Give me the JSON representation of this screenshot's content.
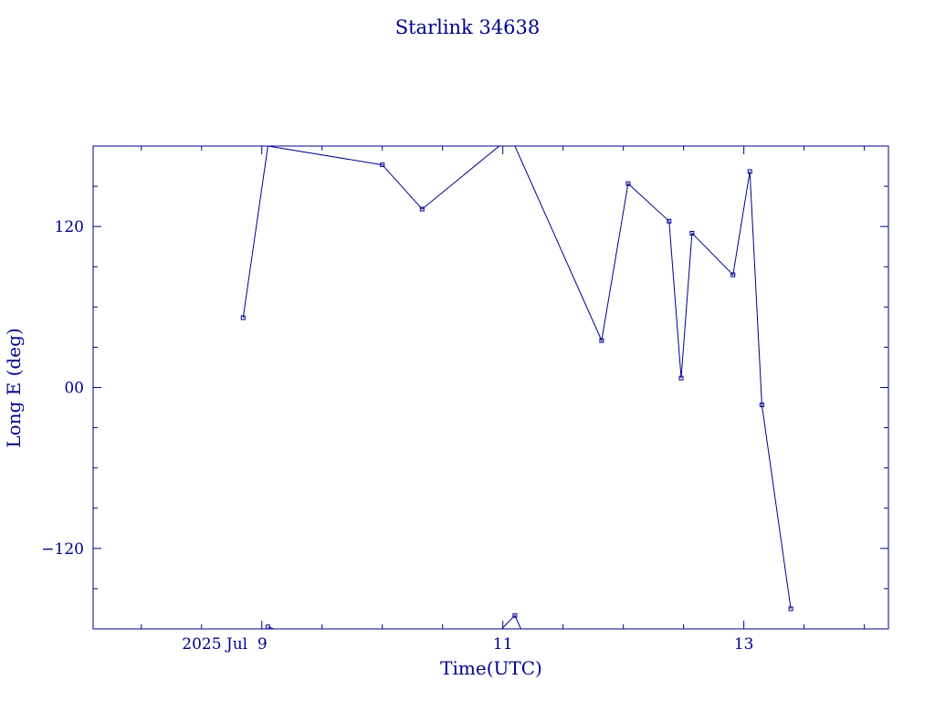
{
  "chart_data": {
    "type": "line",
    "title": "Starlink 34638",
    "xlabel": "Time(UTC)",
    "ylabel": "Long E (deg)",
    "x_tick_labels": [
      "2025 Jul  9",
      "11",
      "13"
    ],
    "x_tick_values": [
      9,
      11,
      13
    ],
    "x_minor_ticks": [
      8.0,
      8.5,
      9.0,
      9.5,
      10.0,
      10.5,
      11.0,
      11.5,
      12.0,
      12.5,
      13.0,
      13.5,
      14.0
    ],
    "xlim": [
      7.6,
      14.2
    ],
    "y_tick_labels": [
      "120",
      "00",
      "−120"
    ],
    "y_tick_values": [
      120,
      0,
      -120
    ],
    "y_minor_ticks": [
      150,
      120,
      90,
      60,
      30,
      0,
      -30,
      -60,
      -90,
      -120,
      -150
    ],
    "ylim": [
      -180,
      180
    ],
    "grid": false,
    "color": "#00008b",
    "segments": [
      [
        {
          "x": 8.845,
          "y": 52
        },
        {
          "x": 9.05,
          "y": 180
        }
      ],
      [
        {
          "x": 9.05,
          "y": 180
        },
        {
          "x": 10.0,
          "y": 166
        },
        {
          "x": 10.33,
          "y": 133
        },
        {
          "x": 10.97,
          "y": 180
        }
      ],
      [
        {
          "x": 11.1,
          "y": 180
        },
        {
          "x": 11.82,
          "y": 35
        },
        {
          "x": 12.04,
          "y": 152
        },
        {
          "x": 12.38,
          "y": 124
        },
        {
          "x": 12.48,
          "y": 7
        },
        {
          "x": 12.57,
          "y": 115
        },
        {
          "x": 12.91,
          "y": 84
        },
        {
          "x": 13.05,
          "y": 161
        },
        {
          "x": 13.15,
          "y": -13
        },
        {
          "x": 13.39,
          "y": -165
        }
      ],
      [
        {
          "x": 9.05,
          "y": -178.5
        },
        {
          "x": 9.1,
          "y": -180
        }
      ],
      [
        {
          "x": 10.99,
          "y": -180
        },
        {
          "x": 11.1,
          "y": -170
        },
        {
          "x": 11.15,
          "y": -180
        }
      ]
    ],
    "markers": [
      {
        "x": 8.845,
        "y": 52
      },
      {
        "x": 10.0,
        "y": 166
      },
      {
        "x": 10.33,
        "y": 133
      },
      {
        "x": 11.82,
        "y": 35
      },
      {
        "x": 12.04,
        "y": 152
      },
      {
        "x": 12.38,
        "y": 124
      },
      {
        "x": 12.48,
        "y": 7
      },
      {
        "x": 12.57,
        "y": 115
      },
      {
        "x": 12.91,
        "y": 84
      },
      {
        "x": 13.05,
        "y": 161
      },
      {
        "x": 13.15,
        "y": -13
      },
      {
        "x": 13.39,
        "y": -165
      },
      {
        "x": 9.05,
        "y": -178.5
      },
      {
        "x": 11.1,
        "y": -170
      }
    ]
  }
}
